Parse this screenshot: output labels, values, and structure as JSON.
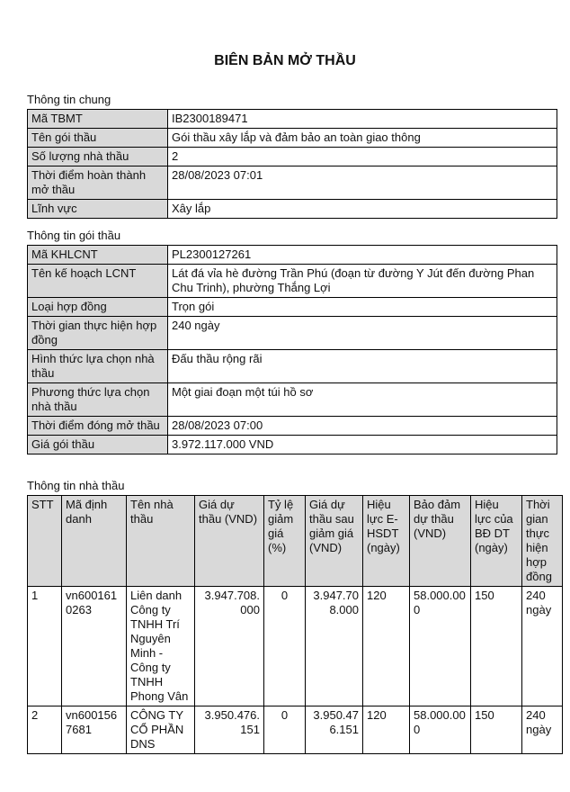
{
  "page": {
    "title": "BIÊN BẢN MỞ THẦU"
  },
  "colors": {
    "header_bg": "#d9d9d9",
    "border": "#000000",
    "text": "#111111"
  },
  "sections": {
    "general": {
      "heading": "Thông tin chung",
      "rows": [
        {
          "label": "Mã TBMT",
          "value": "IB2300189471"
        },
        {
          "label": "Tên gói thầu",
          "value": "Gói thầu xây lắp và đảm bảo an toàn giao thông"
        },
        {
          "label": "Số lượng nhà thầu",
          "value": "2"
        },
        {
          "label": "Thời điểm hoàn thành mở thầu",
          "value": "28/08/2023 07:01"
        },
        {
          "label": "Lĩnh vực",
          "value": "Xây lắp"
        }
      ]
    },
    "package": {
      "heading": "Thông tin gói thầu",
      "rows": [
        {
          "label": "Mã KHLCNT",
          "value": "PL2300127261"
        },
        {
          "label": "Tên kế hoạch LCNT",
          "value": "Lát đá vỉa hè đường Trần Phú (đoạn từ đường Y Jút đến đường Phan Chu Trinh), phường Thắng Lợi"
        },
        {
          "label": "Loại hợp đồng",
          "value": "Trọn gói"
        },
        {
          "label": "Thời gian thực hiện hợp đồng",
          "value": "240 ngày"
        },
        {
          "label": "Hình thức lựa chọn nhà thầu",
          "value": "Đấu thầu rộng rãi"
        },
        {
          "label": "Phương thức lựa chọn nhà thầu",
          "value": "Một giai đoạn một túi hồ sơ"
        },
        {
          "label": "Thời điểm đóng mở thầu",
          "value": "28/08/2023 07:00"
        },
        {
          "label": "Giá gói thầu",
          "value": "3.972.117.000 VND"
        }
      ]
    },
    "contractors": {
      "heading": "Thông tin nhà thầu",
      "columns": [
        "STT",
        "Mã định danh",
        "Tên nhà thầu",
        "Giá dự thầu (VND)",
        "Tỷ lệ giảm giá (%)",
        "Giá dự thầu sau giảm giá (VND)",
        "Hiệu lực E-HSDT (ngày)",
        "Bảo đảm dự thầu (VND)",
        "Hiệu lực của BĐ DT (ngày)",
        "Thời gian thực hiện hợp đồng"
      ],
      "rows": [
        [
          "1",
          "vn6001610263",
          "Liên danh Công ty TNHH Trí Nguyên Minh - Công ty TNHH Phong Vân",
          "3.947.708.000",
          "0",
          "3.947.708.000",
          "120",
          "58.000.000",
          "150",
          "240 ngày"
        ],
        [
          "2",
          "vn6001567681",
          "CÔNG TY CỔ PHẦN DNS",
          "3.950.476.151",
          "0",
          "3.950.476.151",
          "120",
          "58.000.000",
          "150",
          "240 ngày"
        ]
      ]
    }
  }
}
